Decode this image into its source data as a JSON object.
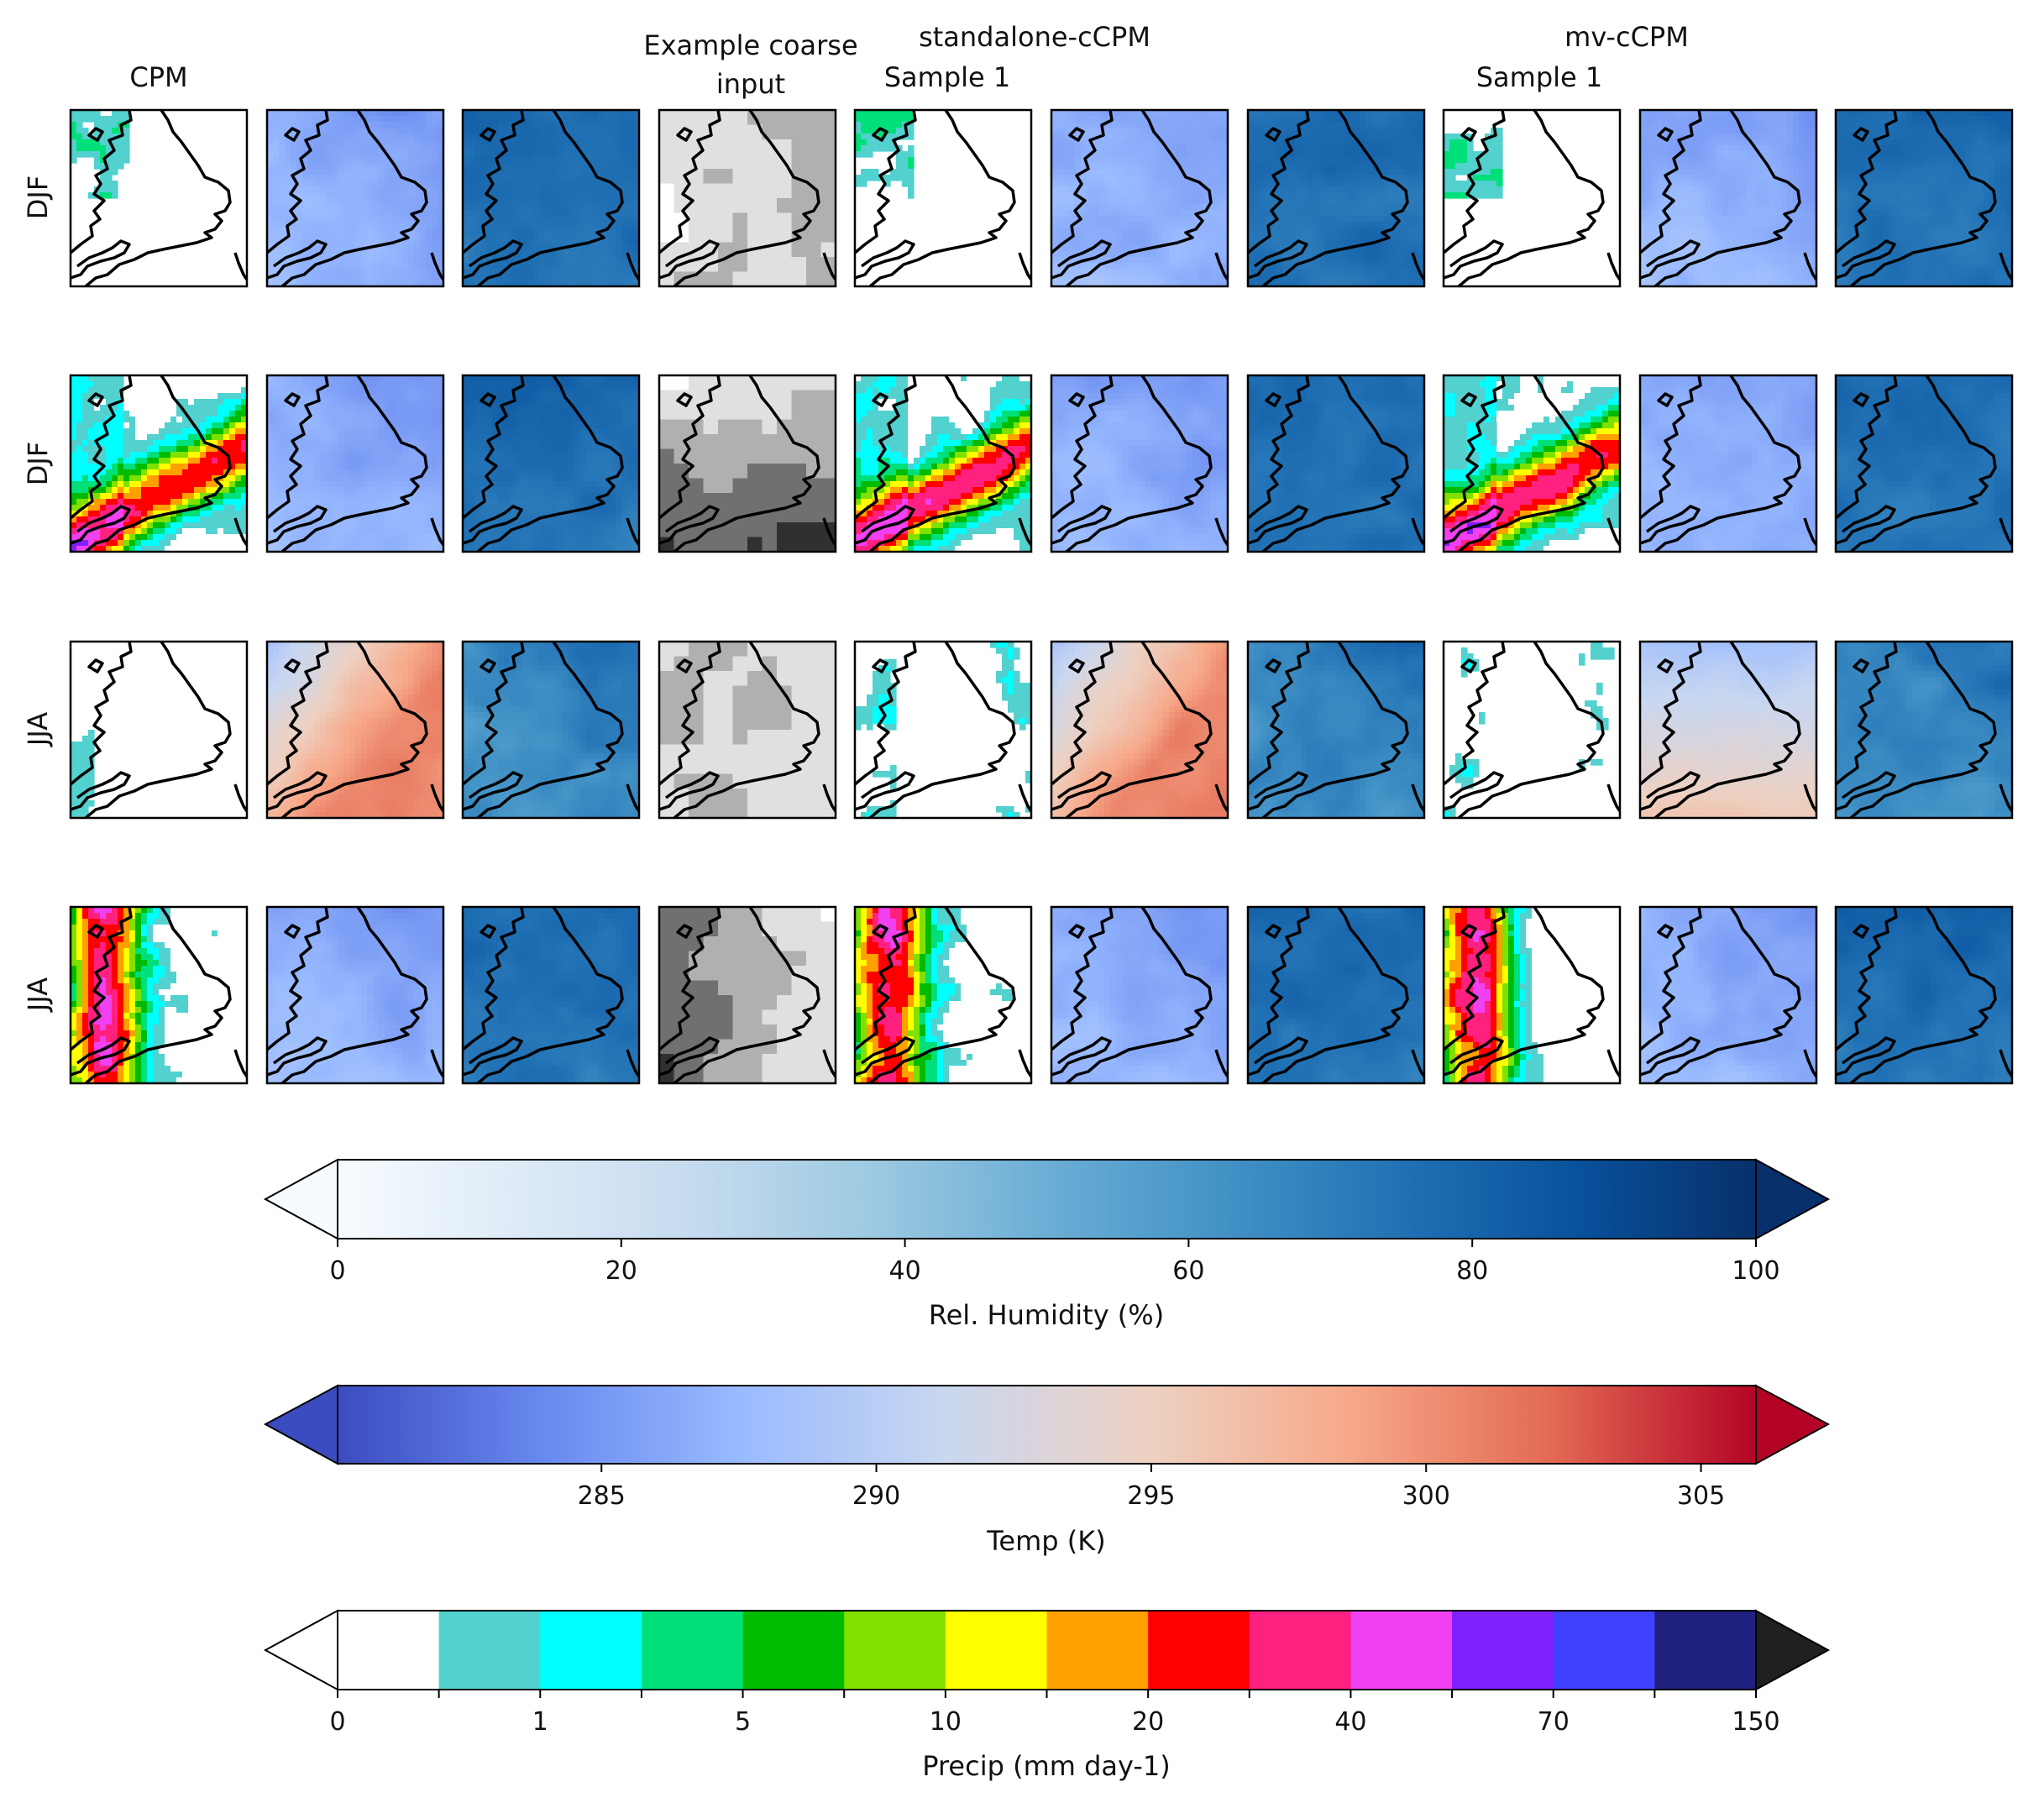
{
  "headers": {
    "cpm": "CPM",
    "coarse": "Example coarse\ninput",
    "standalone": "standalone-cCPM",
    "mv": "mv-cCPM",
    "standalone_sample": "Sample 1",
    "mv_sample": "Sample 1"
  },
  "row_labels": [
    "DJF",
    "DJF",
    "JJA",
    "JJA"
  ],
  "panels": [
    [
      "precip-light",
      "temp-cold",
      "rh-high",
      "coarse-light",
      "precip-light",
      "temp-cold",
      "rh-high",
      "precip-light",
      "temp-cold",
      "rh-high"
    ],
    [
      "precip-band",
      "temp-cold",
      "rh-high",
      "coarse-dark-south",
      "precip-band",
      "temp-cold",
      "rh-high",
      "precip-band",
      "temp-cold",
      "rh-high"
    ],
    [
      "precip-dry",
      "temp-warm",
      "rh-mid",
      "coarse-mixed",
      "precip-dry-sparse",
      "temp-warm",
      "rh-mid",
      "precip-dry-sparse",
      "temp-mild",
      "rh-mid"
    ],
    [
      "precip-heavy-west",
      "temp-cold",
      "rh-high",
      "coarse-dark-west",
      "precip-heavy-west",
      "temp-cold",
      "rh-high",
      "precip-heavy-west",
      "temp-cold",
      "rh-high"
    ]
  ],
  "colorbars": [
    {
      "label": "Rel. Humidity (%)",
      "ticks": [
        "0",
        "20",
        "40",
        "60",
        "80",
        "100"
      ],
      "range": [
        0,
        100
      ],
      "tick_values": [
        0,
        20,
        40,
        60,
        80,
        100
      ],
      "colormap": [
        "#f7fbff",
        "#deebf7",
        "#c6dbef",
        "#9ecae1",
        "#6baed6",
        "#4292c6",
        "#2171b5",
        "#08519c",
        "#08306b"
      ],
      "extend": "both"
    },
    {
      "label": "Temp (K)",
      "ticks": [
        "285",
        "290",
        "295",
        "300",
        "305"
      ],
      "range": [
        280.2,
        306
      ],
      "tick_values": [
        285,
        290,
        295,
        300,
        305
      ],
      "colormap": [
        "#3b4cc0",
        "#6788ee",
        "#9abbff",
        "#c9d7f0",
        "#edd1c2",
        "#f7a889",
        "#e26952",
        "#b40426"
      ],
      "extend": "both"
    },
    {
      "label": "Precip (mm day-1)",
      "ticks": [
        "0",
        "1",
        "5",
        "10",
        "20",
        "40",
        "70",
        "150"
      ],
      "bin_colors": [
        "#ffffff",
        "#52d1cf",
        "#00ffff",
        "#00e07a",
        "#00bb00",
        "#80e000",
        "#ffff00",
        "#ffa000",
        "#ff0000",
        "#ff2080",
        "#f040f0",
        "#8020ff",
        "#4040ff",
        "#202080",
        "#202020"
      ],
      "extend": "both"
    }
  ]
}
